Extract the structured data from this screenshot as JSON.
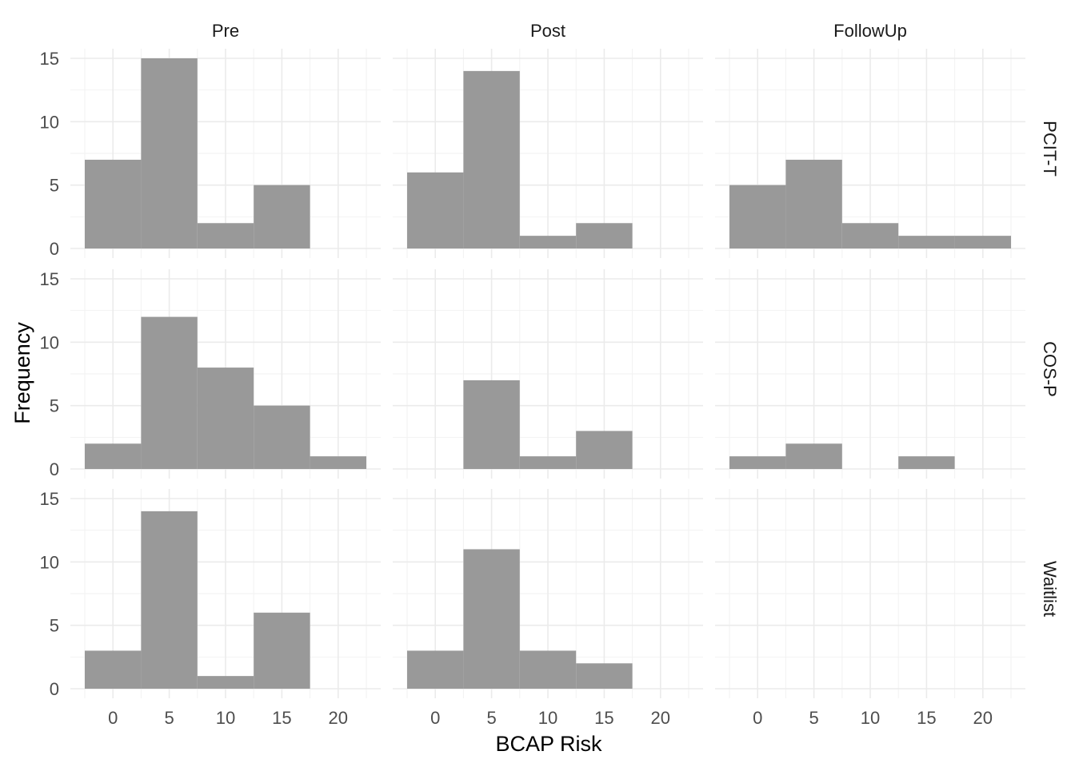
{
  "chart_data": {
    "type": "bar",
    "subtype": "faceted-histogram",
    "title": "",
    "xlabel": "BCAP Risk",
    "ylabel": "Frequency",
    "xlim": [
      -2.5,
      22.5
    ],
    "ylim": [
      0,
      15
    ],
    "xticks": [
      0,
      5,
      10,
      15,
      20
    ],
    "yticks": [
      0,
      5,
      10,
      15
    ],
    "bin_width": 5,
    "bin_centers": [
      0,
      5,
      10,
      15,
      20
    ],
    "col_facets": [
      "Pre",
      "Post",
      "FollowUp"
    ],
    "row_facets": [
      "PCIT-T",
      "COS-P",
      "Waitlist"
    ],
    "grid": true,
    "bar_color": "#999999",
    "panels": [
      {
        "row": "PCIT-T",
        "col": "Pre",
        "values": [
          7,
          15,
          2,
          5,
          0
        ]
      },
      {
        "row": "PCIT-T",
        "col": "Post",
        "values": [
          6,
          14,
          1,
          2,
          0
        ]
      },
      {
        "row": "PCIT-T",
        "col": "FollowUp",
        "values": [
          5,
          7,
          2,
          1,
          1
        ]
      },
      {
        "row": "COS-P",
        "col": "Pre",
        "values": [
          2,
          12,
          8,
          5,
          1
        ]
      },
      {
        "row": "COS-P",
        "col": "Post",
        "values": [
          0,
          7,
          1,
          3,
          0
        ]
      },
      {
        "row": "COS-P",
        "col": "FollowUp",
        "values": [
          1,
          2,
          0,
          1,
          0
        ]
      },
      {
        "row": "Waitlist",
        "col": "Pre",
        "values": [
          3,
          14,
          1,
          6,
          0
        ]
      },
      {
        "row": "Waitlist",
        "col": "Post",
        "values": [
          3,
          11,
          3,
          2,
          0
        ]
      },
      {
        "row": "Waitlist",
        "col": "FollowUp",
        "values": [
          0,
          0,
          0,
          0,
          0
        ]
      }
    ]
  }
}
